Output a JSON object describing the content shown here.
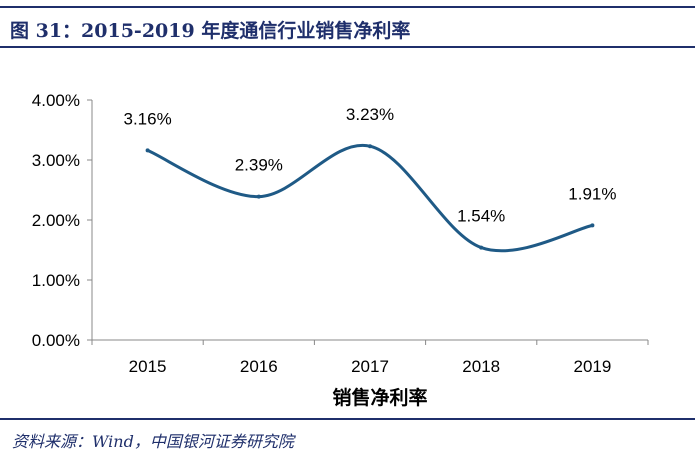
{
  "figure": {
    "title": "图 31：2015-2019 年度通信行业销售净利率",
    "source": "资料来源：Wind，中国银河证券研究院"
  },
  "chart_data": {
    "type": "line",
    "categories": [
      "2015",
      "2016",
      "2017",
      "2018",
      "2019"
    ],
    "series": [
      {
        "name": "销售净利率",
        "values": [
          3.16,
          2.39,
          3.23,
          1.54,
          1.91
        ]
      }
    ],
    "data_labels": [
      "3.16%",
      "2.39%",
      "3.23%",
      "1.54%",
      "1.91%"
    ],
    "y_ticks": [
      "0.00%",
      "1.00%",
      "2.00%",
      "3.00%",
      "4.00%"
    ],
    "ylim": [
      0,
      4
    ],
    "xlabel": "",
    "ylabel": "",
    "legend": "bottom",
    "grid": false,
    "smooth": true,
    "line_color": "#1f5a86"
  }
}
